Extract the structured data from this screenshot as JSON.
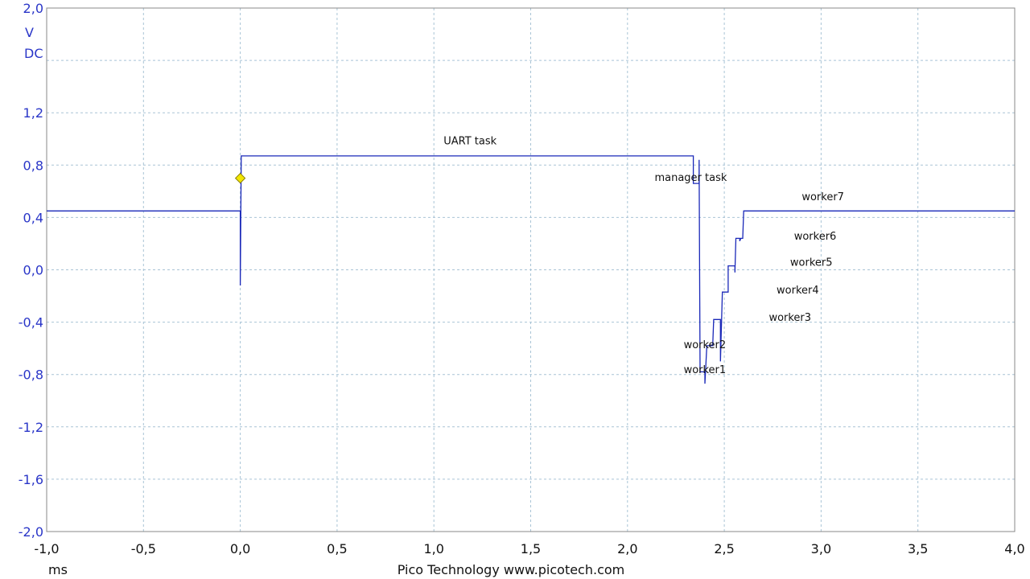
{
  "chart_data": {
    "type": "line",
    "x_unit": "ms",
    "y_unit": "V",
    "y_coupling": "DC",
    "xlim": [
      -1.0,
      4.0
    ],
    "ylim": [
      -2.0,
      2.0
    ],
    "grid": true,
    "x_ticks": [
      "-1,0",
      "-0,5",
      "0,0",
      "0,5",
      "1,0",
      "1,5",
      "2,0",
      "2,5",
      "3,0",
      "3,5",
      "4,0"
    ],
    "y_ticks": [
      "2,0",
      "1,2",
      "0,8",
      "0,4",
      "0,0",
      "-0,4",
      "-0,8",
      "-1,2",
      "-1,6",
      "-2,0"
    ],
    "footer": "Pico Technology   www.picotech.com",
    "trigger_marker": {
      "x": 0.0,
      "y": 0.7,
      "color": "#f2e600"
    },
    "series": [
      {
        "color": "#1a28b8",
        "points": [
          [
            -1.0,
            0.45
          ],
          [
            0.0,
            0.45
          ],
          [
            0.0,
            -0.12
          ],
          [
            0.005,
            0.87
          ],
          [
            2.34,
            0.87
          ],
          [
            2.34,
            0.66
          ],
          [
            2.37,
            0.66
          ],
          [
            2.37,
            0.84
          ],
          [
            2.375,
            -0.78
          ],
          [
            2.4,
            -0.78
          ],
          [
            2.4,
            -0.87
          ],
          [
            2.41,
            -0.58
          ],
          [
            2.44,
            -0.58
          ],
          [
            2.445,
            -0.38
          ],
          [
            2.48,
            -0.38
          ],
          [
            2.48,
            -0.7
          ],
          [
            2.49,
            -0.17
          ],
          [
            2.52,
            -0.17
          ],
          [
            2.52,
            0.03
          ],
          [
            2.555,
            0.03
          ],
          [
            2.555,
            -0.02
          ],
          [
            2.56,
            0.24
          ],
          [
            2.58,
            0.24
          ],
          [
            2.58,
            0.22
          ],
          [
            2.585,
            0.24
          ],
          [
            2.595,
            0.24
          ],
          [
            2.6,
            0.45
          ],
          [
            4.0,
            0.45
          ]
        ]
      }
    ],
    "annotations": [
      {
        "text": "UART task",
        "x": 1.05,
        "y": 0.96
      },
      {
        "text": "manager task",
        "x": 2.14,
        "y": 0.68
      },
      {
        "text": "worker7",
        "x": 2.9,
        "y": 0.53
      },
      {
        "text": "worker6",
        "x": 2.86,
        "y": 0.23
      },
      {
        "text": "worker5",
        "x": 2.84,
        "y": 0.03
      },
      {
        "text": "worker4",
        "x": 2.77,
        "y": -0.18
      },
      {
        "text": "worker3",
        "x": 2.73,
        "y": -0.39
      },
      {
        "text": "worker2",
        "x": 2.29,
        "y": -0.6
      },
      {
        "text": "worker1",
        "x": 2.29,
        "y": -0.79
      }
    ]
  }
}
